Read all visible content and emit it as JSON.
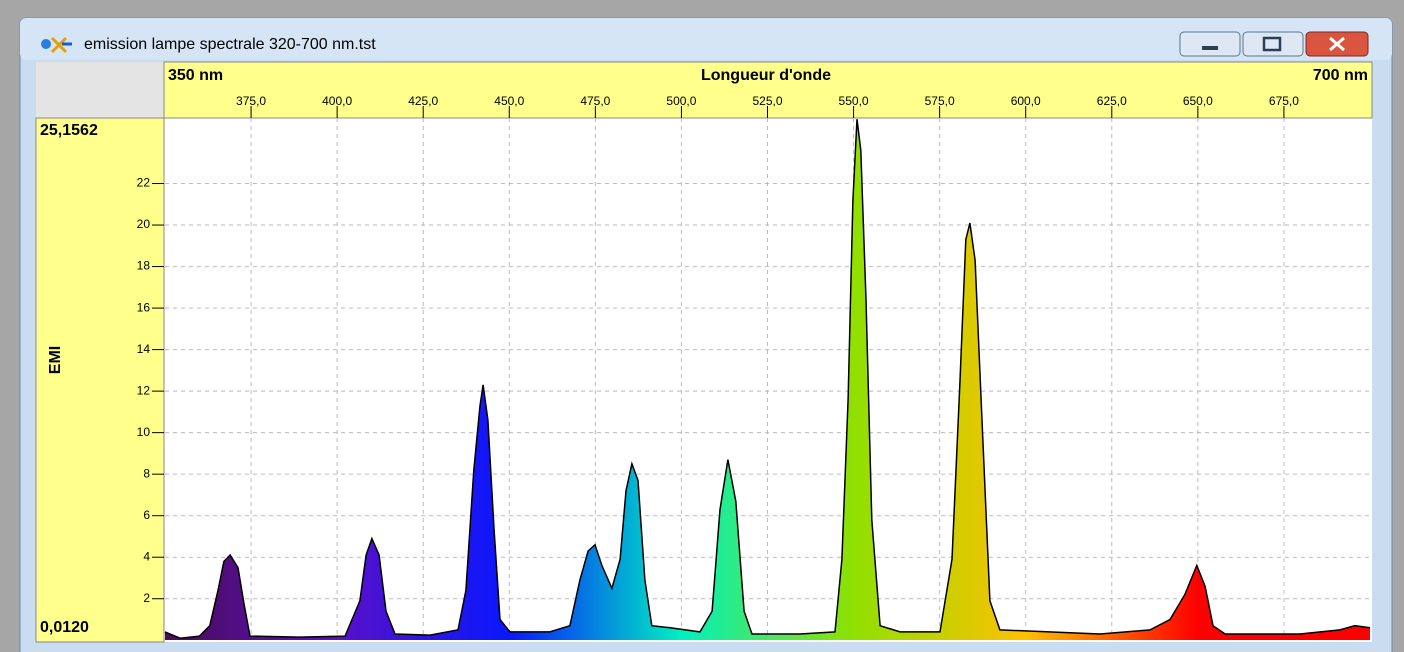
{
  "window_title": "emission lampe spectrale 320-700 nm.tst",
  "chart_data": {
    "type": "area",
    "xlabel": "Longueur d'onde",
    "ylabel": "EMI",
    "xlim": [
      350,
      700
    ],
    "xlim_labels": [
      "350 nm",
      "700 nm"
    ],
    "ylim": [
      0.012,
      25.1562
    ],
    "ylim_labels": [
      "0,0120",
      "25,1562"
    ],
    "xticks": [
      {
        "value": 375,
        "label": "375,0"
      },
      {
        "value": 400,
        "label": "400,0"
      },
      {
        "value": 425,
        "label": "425,0"
      },
      {
        "value": 450,
        "label": "450,0"
      },
      {
        "value": 475,
        "label": "475,0"
      },
      {
        "value": 500,
        "label": "500,0"
      },
      {
        "value": 525,
        "label": "525,0"
      },
      {
        "value": 550,
        "label": "550,0"
      },
      {
        "value": 575,
        "label": "575,0"
      },
      {
        "value": 600,
        "label": "600,0"
      },
      {
        "value": 625,
        "label": "625,0"
      },
      {
        "value": 650,
        "label": "650,0"
      },
      {
        "value": 675,
        "label": "675,0"
      }
    ],
    "yticks": [
      2,
      4,
      6,
      8,
      10,
      12,
      14,
      16,
      18,
      20,
      22
    ],
    "grid": true,
    "line_color": "#000000",
    "fill_colors": [
      "#4a0c52",
      "#5a10c8",
      "#0818ff",
      "#00f0c0",
      "#90e000",
      "#ffc000",
      "#ff0000",
      "#ff0000"
    ],
    "x": [
      350,
      354.4,
      360,
      363,
      365.4,
      367.1,
      368.9,
      371.2,
      373,
      374.7,
      389,
      402.3,
      406.6,
      408.4,
      410.1,
      412.2,
      414.2,
      416.8,
      427,
      435.1,
      437.4,
      439.7,
      441.5,
      442.4,
      443.8,
      445.6,
      447.3,
      450.2,
      461.8,
      467.6,
      470.5,
      472.9,
      474.9,
      476.9,
      479.8,
      482.2,
      483.9,
      485.6,
      487.4,
      489.4,
      491.4,
      496.7,
      505.4,
      508.9,
      511.2,
      513.5,
      515.8,
      518.2,
      520.5,
      534.4,
      544.6,
      546.6,
      548.4,
      549.8,
      551,
      552.1,
      553.6,
      555.3,
      557.7,
      563.5,
      575.1,
      578.6,
      580.9,
      582.6,
      583.8,
      585.3,
      587.3,
      589.6,
      592.5,
      621.6,
      636.1,
      641.9,
      646.2,
      649.7,
      652.1,
      654.4,
      657.9,
      679.6,
      691.3,
      695.6,
      700
    ],
    "values": [
      0.4,
      0.1,
      0.2,
      0.7,
      2.4,
      3.8,
      4.1,
      3.5,
      1.7,
      0.2,
      0.15,
      0.2,
      1.9,
      4.1,
      4.9,
      4.1,
      1.4,
      0.3,
      0.25,
      0.5,
      2.4,
      8.2,
      11.3,
      12.3,
      10.6,
      5.3,
      1.0,
      0.4,
      0.4,
      0.7,
      2.9,
      4.3,
      4.6,
      3.6,
      2.5,
      3.9,
      7.2,
      8.5,
      7.7,
      2.9,
      0.7,
      0.6,
      0.4,
      1.4,
      6.3,
      8.7,
      6.7,
      1.4,
      0.3,
      0.3,
      0.4,
      3.9,
      11.6,
      21.2,
      25.1,
      23.6,
      16.4,
      5.8,
      0.7,
      0.4,
      0.4,
      3.9,
      12.5,
      19.3,
      20.1,
      18.3,
      10.6,
      1.9,
      0.5,
      0.3,
      0.5,
      1.0,
      2.2,
      3.6,
      2.6,
      0.7,
      0.3,
      0.3,
      0.5,
      0.7,
      0.6
    ]
  }
}
